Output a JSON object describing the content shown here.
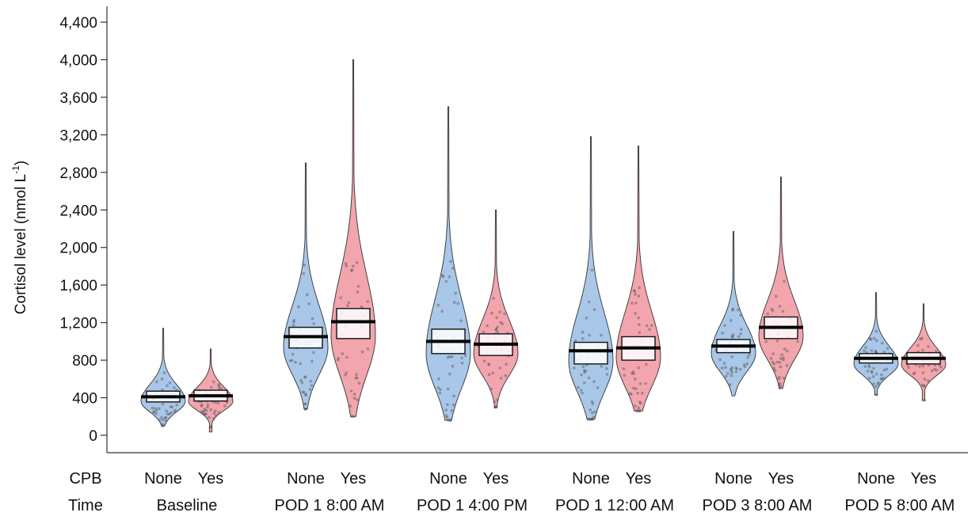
{
  "chart_data": {
    "type": "violin",
    "ylabel": "Cortisol level (nmol L",
    "ylabel_sup": "-1",
    "ylabel_close": ")",
    "ylim": [
      0,
      4400
    ],
    "yticks": [
      0,
      400,
      800,
      1200,
      1600,
      2000,
      2400,
      2800,
      3200,
      3600,
      4000,
      4400
    ],
    "ytick_labels": [
      "0",
      "400",
      "800",
      "1,200",
      "1,600",
      "2,000",
      "2,400",
      "2,800",
      "3,200",
      "3,600",
      "4,000",
      "4,400"
    ],
    "row_labels": {
      "cpb": "CPB",
      "time": "Time"
    },
    "colors": {
      "None": "#a9c7e8",
      "Yes": "#f2a5ad",
      "mean": "#000000",
      "ci_box": "#ffffff"
    },
    "groups": [
      {
        "time": "Baseline",
        "items": [
          {
            "cpb": "None",
            "mean": 410,
            "ci": [
              355,
              470
            ],
            "min": 100,
            "max": 1140
          },
          {
            "cpb": "Yes",
            "mean": 420,
            "ci": [
              365,
              480
            ],
            "min": 35,
            "max": 920
          }
        ]
      },
      {
        "time": "POD 1 8:00 AM",
        "items": [
          {
            "cpb": "None",
            "mean": 1050,
            "ci": [
              930,
              1150
            ],
            "min": 280,
            "max": 2900
          },
          {
            "cpb": "Yes",
            "mean": 1210,
            "ci": [
              1030,
              1350
            ],
            "min": 200,
            "max": 4000
          }
        ]
      },
      {
        "time": "POD 1 4:00 PM",
        "items": [
          {
            "cpb": "None",
            "mean": 1000,
            "ci": [
              870,
              1130
            ],
            "min": 160,
            "max": 3500
          },
          {
            "cpb": "Yes",
            "mean": 970,
            "ci": [
              850,
              1080
            ],
            "min": 300,
            "max": 2400
          }
        ]
      },
      {
        "time": "POD 1 12:00 AM",
        "items": [
          {
            "cpb": "None",
            "mean": 900,
            "ci": [
              760,
              990
            ],
            "min": 170,
            "max": 3180
          },
          {
            "cpb": "Yes",
            "mean": 930,
            "ci": [
              800,
              1050
            ],
            "min": 260,
            "max": 3080
          }
        ]
      },
      {
        "time": "POD 3 8:00 AM",
        "items": [
          {
            "cpb": "None",
            "mean": 950,
            "ci": [
              880,
              1020
            ],
            "min": 420,
            "max": 2170
          },
          {
            "cpb": "Yes",
            "mean": 1150,
            "ci": [
              1030,
              1260
            ],
            "min": 500,
            "max": 2750
          }
        ]
      },
      {
        "time": "POD 5 8:00 AM",
        "items": [
          {
            "cpb": "None",
            "mean": 820,
            "ci": [
              770,
              870
            ],
            "min": 430,
            "max": 1520
          },
          {
            "cpb": "Yes",
            "mean": 820,
            "ci": [
              760,
              880
            ],
            "min": 370,
            "max": 1400
          }
        ]
      }
    ]
  }
}
